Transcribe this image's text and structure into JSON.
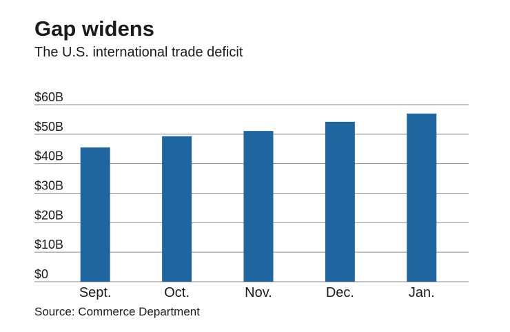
{
  "chart_data": {
    "type": "bar",
    "title": "Gap widens",
    "subtitle": "The U.S. international trade deficit",
    "source": "Source: Commerce Department",
    "categories": [
      "Sept.",
      "Oct.",
      "Nov.",
      "Dec.",
      "Jan."
    ],
    "values": [
      45.5,
      49.3,
      51.1,
      54.2,
      57.0
    ],
    "color": "#1f66a1",
    "ylim": [
      0,
      60
    ],
    "yticks": [
      {
        "value": 0,
        "label": "$0"
      },
      {
        "value": 10,
        "label": "$10B"
      },
      {
        "value": 20,
        "label": "$20B"
      },
      {
        "value": 30,
        "label": "$30B"
      },
      {
        "value": 40,
        "label": "$40B"
      },
      {
        "value": 50,
        "label": "$50B"
      },
      {
        "value": 60,
        "label": "$60B"
      }
    ],
    "grid": true
  }
}
